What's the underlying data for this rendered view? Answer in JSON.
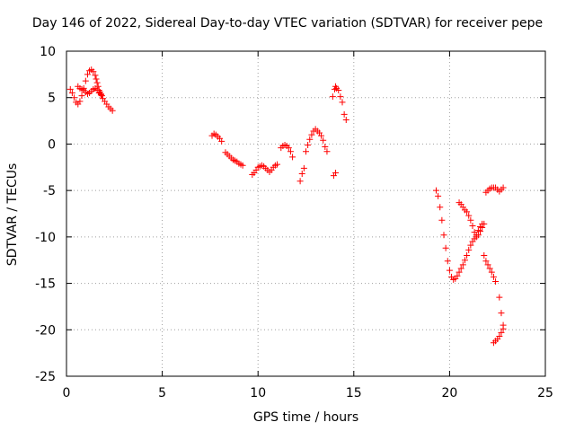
{
  "chart_data": {
    "type": "scatter",
    "title": "Day 146 of 2022, Sidereal Day-to-day VTEC variation (SDTVAR) for receiver pepe",
    "xlabel": "GPS time / hours",
    "ylabel": "SDTVAR / TECUs",
    "xlim": [
      0,
      25
    ],
    "ylim": [
      -25,
      10
    ],
    "xticks": [
      "0",
      "5",
      "10",
      "15",
      "20",
      "25"
    ],
    "yticks": [
      "-25",
      "-20",
      "-15",
      "-10",
      "-5",
      "0",
      "5",
      "10"
    ],
    "grid": true,
    "marker": "plus",
    "color": "#ff0000",
    "series": [
      {
        "x": [
          0.2,
          0.3,
          0.4,
          0.5,
          0.6,
          0.7,
          0.8,
          0.9,
          1.0,
          1.1,
          1.2,
          1.3,
          1.4,
          1.5,
          1.55,
          1.6,
          1.65,
          1.7,
          1.75,
          1.8,
          1.85,
          1.9,
          2.0,
          2.1,
          2.2,
          2.3,
          2.4,
          0.6,
          0.7,
          0.8,
          0.9,
          1.0,
          1.1,
          1.2,
          1.3,
          1.4,
          1.5,
          1.6,
          1.7,
          1.8,
          7.6,
          7.7,
          7.8,
          7.9,
          8.0,
          8.1,
          8.3,
          8.4,
          8.5,
          8.6,
          8.7,
          8.8,
          8.9,
          9.0,
          9.1,
          9.2,
          9.7,
          9.8,
          9.9,
          10.0,
          10.1,
          10.2,
          10.3,
          10.4,
          10.5,
          10.6,
          10.7,
          10.8,
          10.9,
          11.0,
          11.2,
          11.3,
          11.4,
          11.5,
          11.6,
          11.7,
          11.8,
          12.2,
          12.3,
          12.4,
          12.5,
          12.6,
          12.7,
          12.8,
          12.9,
          13.0,
          13.1,
          13.2,
          13.3,
          13.4,
          13.5,
          13.6,
          13.9,
          14.0,
          14.05,
          14.1,
          14.2,
          14.3,
          14.4,
          14.5,
          14.6,
          13.95,
          14.05,
          19.3,
          19.4,
          19.5,
          19.6,
          19.7,
          19.8,
          19.9,
          20.0,
          20.1,
          20.2,
          20.3,
          20.4,
          20.5,
          20.6,
          20.7,
          20.8,
          20.9,
          21.0,
          21.1,
          21.2,
          21.3,
          21.4,
          21.5,
          21.6,
          21.7,
          20.5,
          20.6,
          20.7,
          20.8,
          20.9,
          21.0,
          21.1,
          21.2,
          21.3,
          21.4,
          21.5,
          21.6,
          21.7,
          21.8,
          21.8,
          21.9,
          22.0,
          22.1,
          22.2,
          22.3,
          22.4,
          22.6,
          22.7,
          22.8,
          21.9,
          22.0,
          22.1,
          22.2,
          22.3,
          22.4,
          22.5,
          22.6,
          22.7,
          22.8,
          22.3,
          22.4,
          22.5,
          22.6,
          22.7,
          22.8
        ],
        "y": [
          5.9,
          5.5,
          5.0,
          4.5,
          4.3,
          4.6,
          5.2,
          6.0,
          6.8,
          7.5,
          7.9,
          8.0,
          7.8,
          7.4,
          7.0,
          6.6,
          6.2,
          5.8,
          5.6,
          5.4,
          5.2,
          4.9,
          4.6,
          4.3,
          4.0,
          3.8,
          3.6,
          6.2,
          6.0,
          5.9,
          5.8,
          5.6,
          5.4,
          5.5,
          5.7,
          5.9,
          6.0,
          5.8,
          5.5,
          5.3,
          0.9,
          1.1,
          1.0,
          0.8,
          0.6,
          0.3,
          -0.9,
          -1.1,
          -1.3,
          -1.5,
          -1.7,
          -1.8,
          -1.9,
          -2.1,
          -2.2,
          -2.3,
          -3.3,
          -3.1,
          -2.8,
          -2.5,
          -2.4,
          -2.3,
          -2.4,
          -2.6,
          -2.8,
          -3.0,
          -2.8,
          -2.5,
          -2.3,
          -2.2,
          -0.4,
          -0.2,
          -0.1,
          -0.2,
          -0.4,
          -0.8,
          -1.4,
          -4.0,
          -3.2,
          -2.6,
          -0.8,
          -0.1,
          0.5,
          1.0,
          1.4,
          1.6,
          1.4,
          1.2,
          0.9,
          0.4,
          -0.3,
          -0.8,
          5.1,
          5.9,
          6.2,
          6.0,
          5.8,
          5.1,
          4.5,
          3.2,
          2.6,
          -3.4,
          -3.1,
          -5.0,
          -5.6,
          -6.8,
          -8.2,
          -9.8,
          -11.2,
          -12.6,
          -13.6,
          -14.3,
          -14.6,
          -14.5,
          -14.2,
          -13.8,
          -13.4,
          -13.0,
          -12.5,
          -12.0,
          -11.4,
          -10.9,
          -10.5,
          -10.2,
          -9.8,
          -9.3,
          -8.9,
          -8.6,
          -6.3,
          -6.5,
          -6.8,
          -7.1,
          -7.3,
          -7.7,
          -8.2,
          -8.8,
          -9.5,
          -10.0,
          -9.8,
          -9.4,
          -9.0,
          -8.6,
          -12.0,
          -12.6,
          -13.0,
          -13.4,
          -13.8,
          -14.3,
          -14.8,
          -16.5,
          -18.2,
          -19.5,
          -5.2,
          -5.0,
          -4.8,
          -4.7,
          -4.7,
          -4.7,
          -4.9,
          -5.1,
          -4.9,
          -4.7,
          -21.4,
          -21.2,
          -21.0,
          -20.7,
          -20.3,
          -19.9
        ]
      }
    ]
  }
}
